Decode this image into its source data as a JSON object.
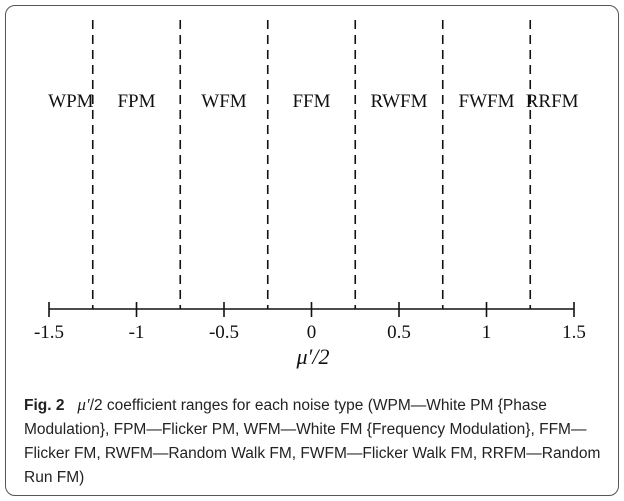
{
  "chart_data": {
    "type": "number-line",
    "regions": [
      {
        "label": "WPM",
        "from": -1.5,
        "to": -1.25
      },
      {
        "label": "FPM",
        "from": -1.25,
        "to": -0.75
      },
      {
        "label": "WFM",
        "from": -0.75,
        "to": -0.25
      },
      {
        "label": "FFM",
        "from": -0.25,
        "to": 0.25
      },
      {
        "label": "RWFM",
        "from": 0.25,
        "to": 0.75
      },
      {
        "label": "FWFM",
        "from": 0.75,
        "to": 1.25
      },
      {
        "label": "RRFM",
        "from": 1.25,
        "to": 1.5
      }
    ],
    "boundaries": [
      -1.25,
      -0.75,
      -0.25,
      0.25,
      0.75,
      1.25
    ],
    "ticks": [
      -1.5,
      -1,
      -0.5,
      0,
      0.5,
      1,
      1.5
    ],
    "tick_labels": [
      "-1.5",
      "-1",
      "-0.5",
      "0",
      "0.5",
      "1",
      "1.5"
    ],
    "xlim": [
      -1.5,
      1.5
    ],
    "xlabel": "μ′/2"
  },
  "caption": {
    "label": "Fig. 2",
    "symbol": "μ′",
    "text": "/2 coefficient ranges for each noise type (WPM—White PM {Phase Modulation}, FPM—Flicker PM, WFM—White FM {Frequency Modulation}, FFM—Flicker FM, RWFM—Random Walk FM, FWFM—Flicker Walk FM, RRFM—Random Run FM)"
  },
  "colors": {
    "ink": "#111111",
    "border": "#555555"
  }
}
